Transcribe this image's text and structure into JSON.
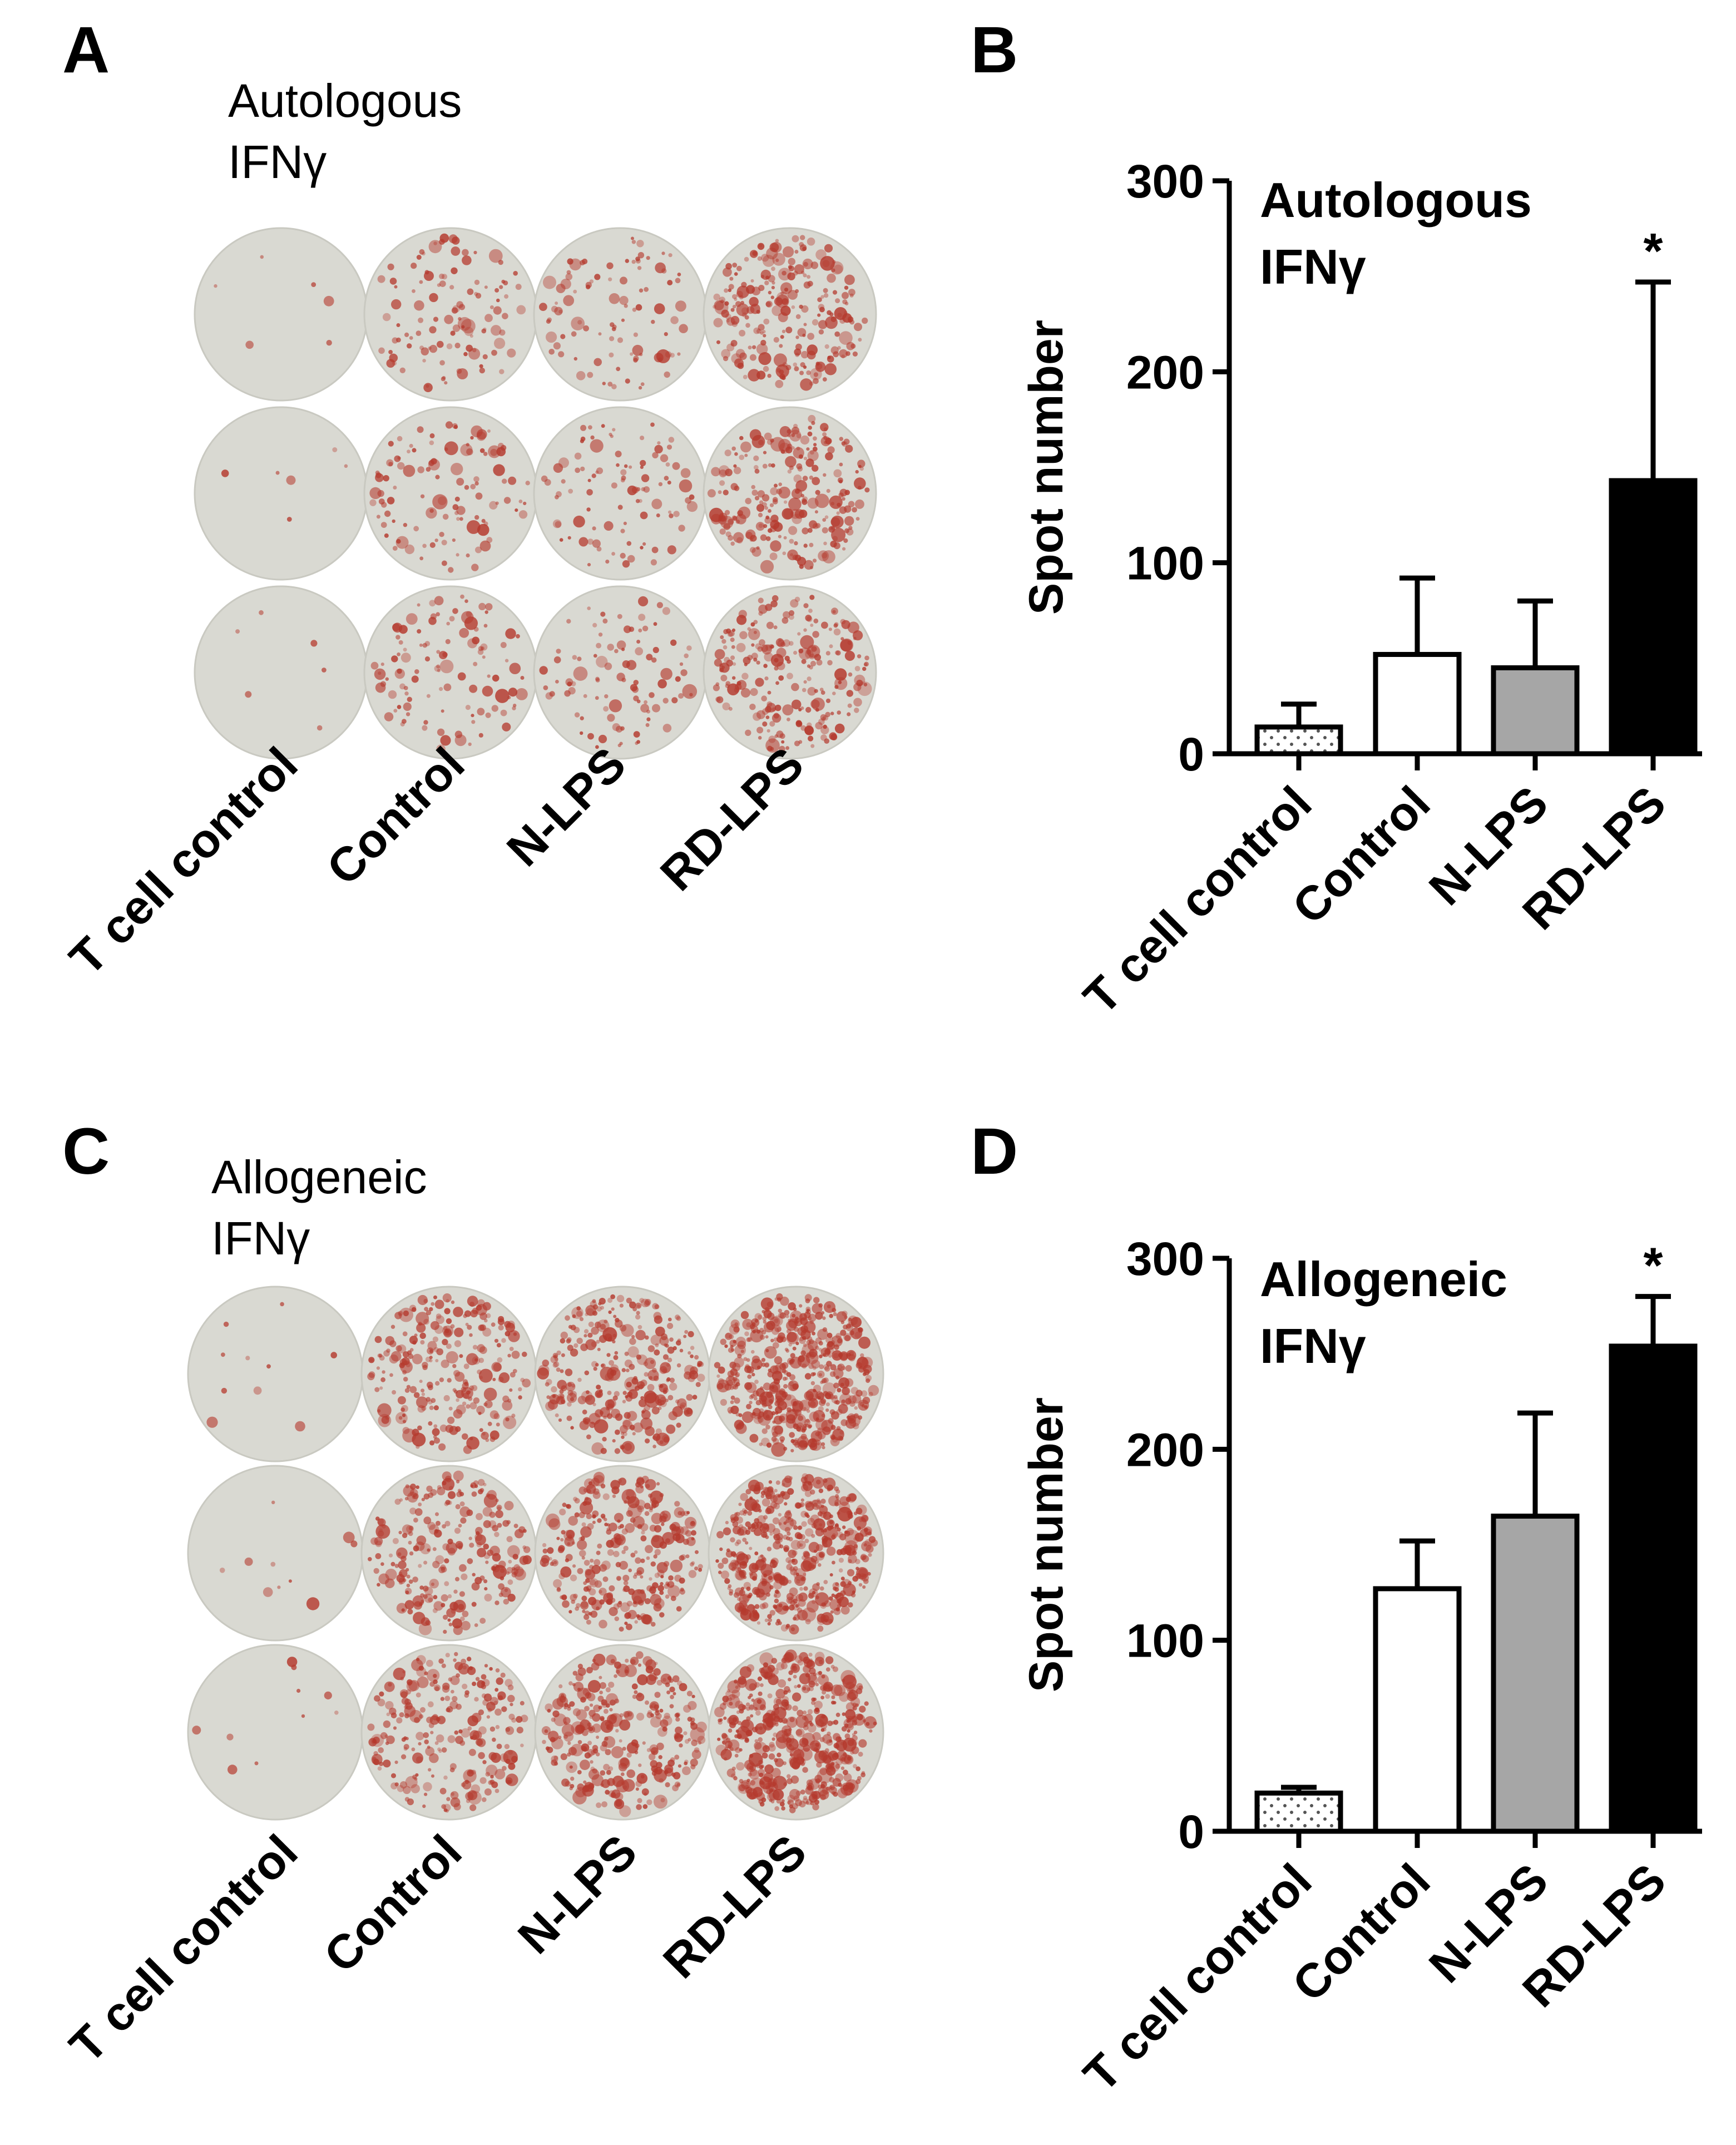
{
  "panels": {
    "A": {
      "letter": "A",
      "title_line1": "Autologous",
      "title_line2": "IFNγ",
      "labels": [
        "T cell control",
        "Control",
        "N-LPS",
        "RD-LPS"
      ]
    },
    "C": {
      "letter": "C",
      "title_line1": "Allogeneic",
      "title_line2": "IFNγ",
      "labels": [
        "T cell control",
        "Control",
        "N-LPS",
        "RD-LPS"
      ]
    },
    "B": {
      "letter": "B"
    },
    "D": {
      "letter": "D"
    }
  },
  "wells": {
    "base_color": "#d9d9d2",
    "spot_color": "#b53a2e",
    "relative_spot_density_A": [
      0.02,
      0.35,
      0.3,
      0.75
    ],
    "relative_spot_density_C": [
      0.03,
      0.8,
      1.0,
      1.6
    ]
  },
  "chart_data": [
    {
      "type": "bar",
      "panel": "B",
      "title_line1": "Autologous",
      "title_line2": "IFNγ",
      "categories": [
        "T cell control",
        "Control",
        "N-LPS",
        "RD-LPS"
      ],
      "values": [
        14,
        52,
        45,
        143
      ],
      "error": [
        12,
        40,
        35,
        104
      ],
      "fills": [
        "dotted",
        "#ffffff",
        "#a6a6a6",
        "#000000"
      ],
      "significance": [
        "",
        "",
        "",
        "*"
      ],
      "ylabel": "Spot number",
      "ylim": [
        0,
        300
      ],
      "yticks": [
        0,
        100,
        200,
        300
      ],
      "ytick_labels": [
        "0",
        "100",
        "200",
        "300"
      ]
    },
    {
      "type": "bar",
      "panel": "D",
      "title_line1": "Allogeneic",
      "title_line2": "IFNγ",
      "categories": [
        "T cell control",
        "Control",
        "N-LPS",
        "RD-LPS"
      ],
      "values": [
        20,
        127,
        165,
        254
      ],
      "error": [
        3,
        25,
        54,
        26
      ],
      "fills": [
        "dotted",
        "#ffffff",
        "#a6a6a6",
        "#000000"
      ],
      "significance": [
        "",
        "",
        "",
        "*"
      ],
      "ylabel": "Spot number",
      "ylim": [
        0,
        300
      ],
      "yticks": [
        0,
        100,
        200,
        300
      ],
      "ytick_labels": [
        "0",
        "100",
        "200",
        "300"
      ]
    }
  ]
}
